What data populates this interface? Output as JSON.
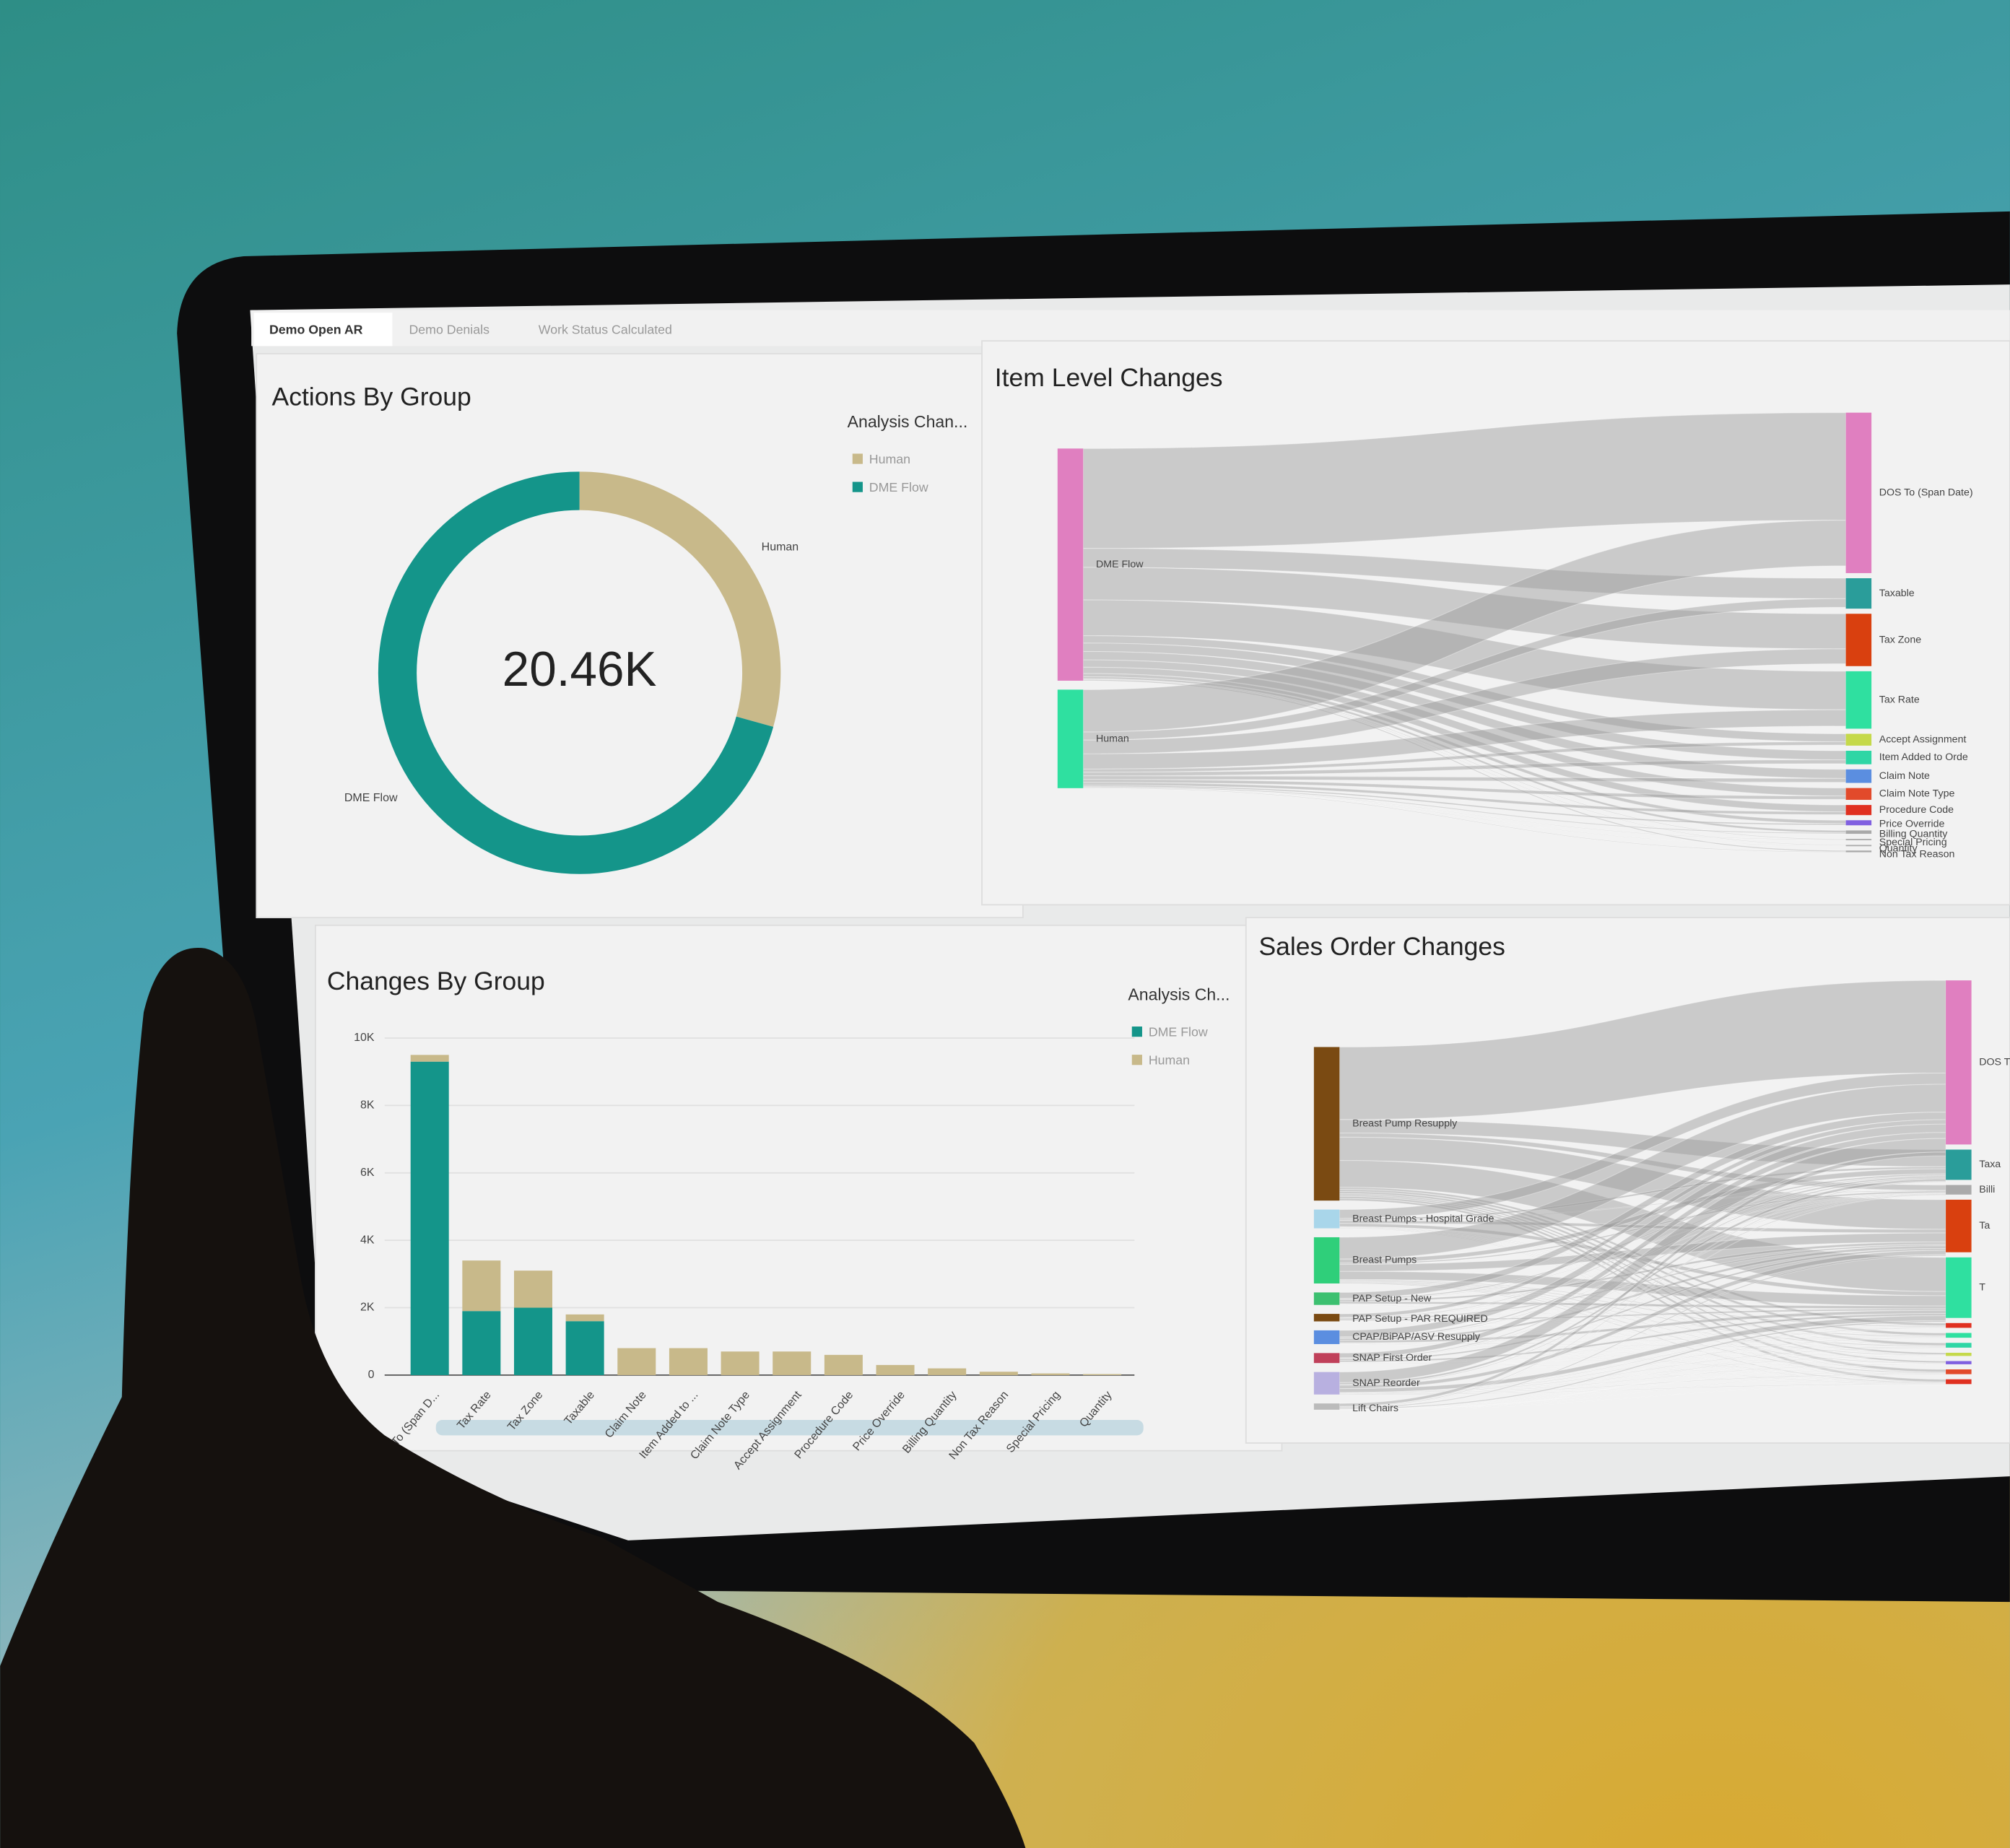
{
  "tabs": [
    "Demo Open AR",
    "Demo Denials",
    "Work Status Calculated"
  ],
  "chart_data": [
    {
      "type": "pie",
      "title": "Actions By Group",
      "legend_title": "Analysis Chan...",
      "categories": [
        "Human",
        "DME Flow"
      ],
      "values": [
        6000,
        14460
      ],
      "colors": [
        "#c8b98a",
        "#14958a"
      ],
      "center_label": "20.46K"
    },
    {
      "type": "sankey",
      "title": "Item Level Changes",
      "sources": [
        {
          "name": "DME Flow",
          "color": "#e07fc0",
          "value": 14800
        },
        {
          "name": "Human",
          "color": "#2fe0a0",
          "value": 6280
        }
      ],
      "targets": [
        {
          "name": "DOS To (Span Date)",
          "color": "#e07fc0",
          "value": 9500
        },
        {
          "name": "Taxable",
          "color": "#2a9d9a",
          "value": 1800
        },
        {
          "name": "Tax Zone",
          "color": "#d9400f",
          "value": 3100
        },
        {
          "name": "Tax Rate",
          "color": "#2fe0a0",
          "value": 3400
        },
        {
          "name": "Accept Assignment",
          "color": "#c5d94a",
          "value": 700
        },
        {
          "name": "Item Added to Orde",
          "color": "#2fd6a5",
          "value": 800
        },
        {
          "name": "Claim Note",
          "color": "#5b8ee0",
          "value": 800
        },
        {
          "name": "Claim Note Type",
          "color": "#e24a2b",
          "value": 700
        },
        {
          "name": "Procedure Code",
          "color": "#e03020",
          "value": 600
        },
        {
          "name": "Price Override",
          "color": "#8060e0",
          "value": 300
        },
        {
          "name": "Billing Quantity",
          "color": "#aaaaaa",
          "value": 200
        },
        {
          "name": "Special Pricing",
          "color": "#aaaaaa",
          "value": 50
        },
        {
          "name": "Quantity",
          "color": "#aaaaaa",
          "value": 30
        },
        {
          "name": "Non Tax Reason",
          "color": "#aaaaaa",
          "value": 100
        }
      ]
    },
    {
      "type": "bar",
      "stacked": true,
      "title": "Changes By Group",
      "legend_title": "Analysis Ch...",
      "categories": [
        "To (Span D...",
        "Tax Rate",
        "Tax Zone",
        "Taxable",
        "Claim Note",
        "Item Added to ...",
        "Claim Note Type",
        "Accept Assignment",
        "Procedure Code",
        "Price Override",
        "Billing Quantity",
        "Non Tax Reason",
        "Special Pricing",
        "Quantity"
      ],
      "series": [
        {
          "name": "DME Flow",
          "color": "#14958a",
          "values": [
            9300,
            1900,
            2000,
            1600,
            0,
            0,
            0,
            0,
            0,
            0,
            0,
            0,
            0,
            0
          ]
        },
        {
          "name": "Human",
          "color": "#c8b98a",
          "values": [
            200,
            1500,
            1100,
            200,
            800,
            800,
            700,
            700,
            600,
            300,
            200,
            100,
            50,
            30
          ]
        }
      ],
      "ylim": [
        0,
        10000
      ],
      "yticks": [
        0,
        {
          "value": 2000,
          "label": "2K"
        },
        {
          "value": 4000,
          "label": "4K"
        },
        {
          "value": 6000,
          "label": "6K"
        },
        {
          "value": 8000,
          "label": "8K"
        },
        {
          "value": 10000,
          "label": "10K"
        }
      ],
      "grid": true
    },
    {
      "type": "sankey",
      "title": "Sales Order Changes",
      "sources": [
        {
          "name": "Breast Pump Resupply",
          "color": "#7a4a12",
          "value": 123
        },
        {
          "name": "Breast Pumps - Hospital Grade",
          "color": "#a9d6ea",
          "value": 15
        },
        {
          "name": "Breast Pumps",
          "color": "#2fcf7a",
          "value": 37
        },
        {
          "name": "PAP Setup - New",
          "color": "#3cc070",
          "value": 10
        },
        {
          "name": "PAP Setup - PAR REQUIRED",
          "color": "#7a4a12",
          "value": 6
        },
        {
          "name": "CPAP/BiPAP/ASV Resupply",
          "color": "#5b8ee0",
          "value": 11
        },
        {
          "name": "SNAP First Order",
          "color": "#c0405a",
          "value": 8
        },
        {
          "name": "SNAP Reorder",
          "color": "#b8b0e0",
          "value": 18
        },
        {
          "name": "Lift Chairs",
          "color": "#bbbbbb",
          "value": 5
        }
      ],
      "targets": [
        {
          "name": "DOS T",
          "color": "#e07fc0",
          "value": 103
        },
        {
          "name": "Taxa",
          "color": "#2a9d9a",
          "value": 19
        },
        {
          "name": "Billi",
          "color": "#aaaaaa",
          "value": 6
        },
        {
          "name": "Ta",
          "color": "#d9400f",
          "value": 33
        },
        {
          "name": "T",
          "color": "#2fe0a0",
          "value": 38
        },
        {
          "name": null,
          "color": "#e03020",
          "value": 3
        },
        {
          "name": null,
          "color": "#2fe0a0",
          "value": 3
        },
        {
          "name": null,
          "color": "#2fd6a5",
          "value": 3
        },
        {
          "name": null,
          "color": "#c5d94a",
          "value": 2
        },
        {
          "name": null,
          "color": "#8060e0",
          "value": 2
        },
        {
          "name": null,
          "color": "#e24a2b",
          "value": 3
        },
        {
          "name": null,
          "color": "#e03020",
          "value": 3
        }
      ]
    }
  ]
}
